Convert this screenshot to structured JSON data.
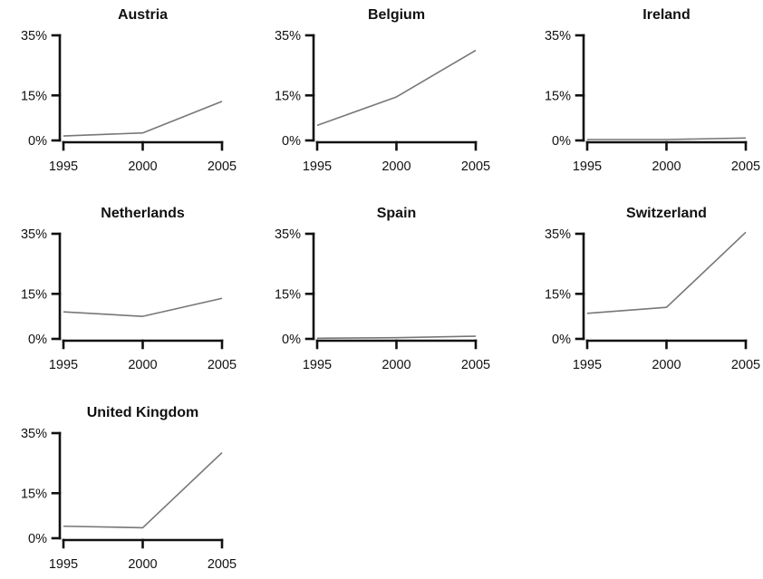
{
  "chart_data": [
    {
      "type": "line",
      "title": "Austria",
      "x": [
        1995,
        2000,
        2005
      ],
      "series": [
        {
          "values": [
            1.5,
            2.5,
            13
          ]
        }
      ],
      "xticks": [
        "1995",
        "2000",
        "2005"
      ],
      "yticks": [
        "0%",
        "15%",
        "35%"
      ],
      "ytick_values": [
        0,
        15,
        35
      ],
      "ylim": [
        0,
        35
      ],
      "xlim": [
        1995,
        2005
      ],
      "grid": false
    },
    {
      "type": "line",
      "title": "Belgium",
      "x": [
        1995,
        2000,
        2005
      ],
      "series": [
        {
          "values": [
            5,
            14.5,
            30
          ]
        }
      ],
      "xticks": [
        "1995",
        "2000",
        "2005"
      ],
      "yticks": [
        "0%",
        "15%",
        "35%"
      ],
      "ytick_values": [
        0,
        15,
        35
      ],
      "ylim": [
        0,
        35
      ],
      "xlim": [
        1995,
        2005
      ],
      "grid": false
    },
    {
      "type": "line",
      "title": "Ireland",
      "x": [
        1995,
        2000,
        2005
      ],
      "series": [
        {
          "values": [
            0.3,
            0.3,
            0.8
          ]
        }
      ],
      "xticks": [
        "1995",
        "2000",
        "2005"
      ],
      "yticks": [
        "0%",
        "15%",
        "35%"
      ],
      "ytick_values": [
        0,
        15,
        35
      ],
      "ylim": [
        0,
        35
      ],
      "xlim": [
        1995,
        2005
      ],
      "grid": false
    },
    {
      "type": "line",
      "title": "Netherlands",
      "x": [
        1995,
        2000,
        2005
      ],
      "series": [
        {
          "values": [
            9,
            7.5,
            13.5
          ]
        }
      ],
      "xticks": [
        "1995",
        "2000",
        "2005"
      ],
      "yticks": [
        "0%",
        "15%",
        "35%"
      ],
      "ytick_values": [
        0,
        15,
        35
      ],
      "ylim": [
        0,
        35
      ],
      "xlim": [
        1995,
        2005
      ],
      "grid": false
    },
    {
      "type": "line",
      "title": "Spain",
      "x": [
        1995,
        2000,
        2005
      ],
      "series": [
        {
          "values": [
            0.2,
            0.4,
            0.9
          ]
        }
      ],
      "xticks": [
        "1995",
        "2000",
        "2005"
      ],
      "yticks": [
        "0%",
        "15%",
        "35%"
      ],
      "ytick_values": [
        0,
        15,
        35
      ],
      "ylim": [
        0,
        35
      ],
      "xlim": [
        1995,
        2005
      ],
      "grid": false
    },
    {
      "type": "line",
      "title": "Switzerland",
      "x": [
        1995,
        2000,
        2005
      ],
      "series": [
        {
          "values": [
            8.5,
            10.5,
            35.5
          ]
        }
      ],
      "xticks": [
        "1995",
        "2000",
        "2005"
      ],
      "yticks": [
        "0%",
        "15%",
        "35%"
      ],
      "ytick_values": [
        0,
        15,
        35
      ],
      "ylim": [
        0,
        35
      ],
      "xlim": [
        1995,
        2005
      ],
      "grid": false
    },
    {
      "type": "line",
      "title": "United Kingdom",
      "x": [
        1995,
        2000,
        2005
      ],
      "series": [
        {
          "values": [
            4,
            3.5,
            28.5
          ]
        }
      ],
      "xticks": [
        "1995",
        "2000",
        "2005"
      ],
      "yticks": [
        "0%",
        "15%",
        "35%"
      ],
      "ytick_values": [
        0,
        15,
        35
      ],
      "ylim": [
        0,
        35
      ],
      "xlim": [
        1995,
        2005
      ],
      "grid": false
    }
  ],
  "colors": {
    "series_line": "#777777",
    "axis": "#111111",
    "text": "#111111",
    "background": "#ffffff"
  }
}
